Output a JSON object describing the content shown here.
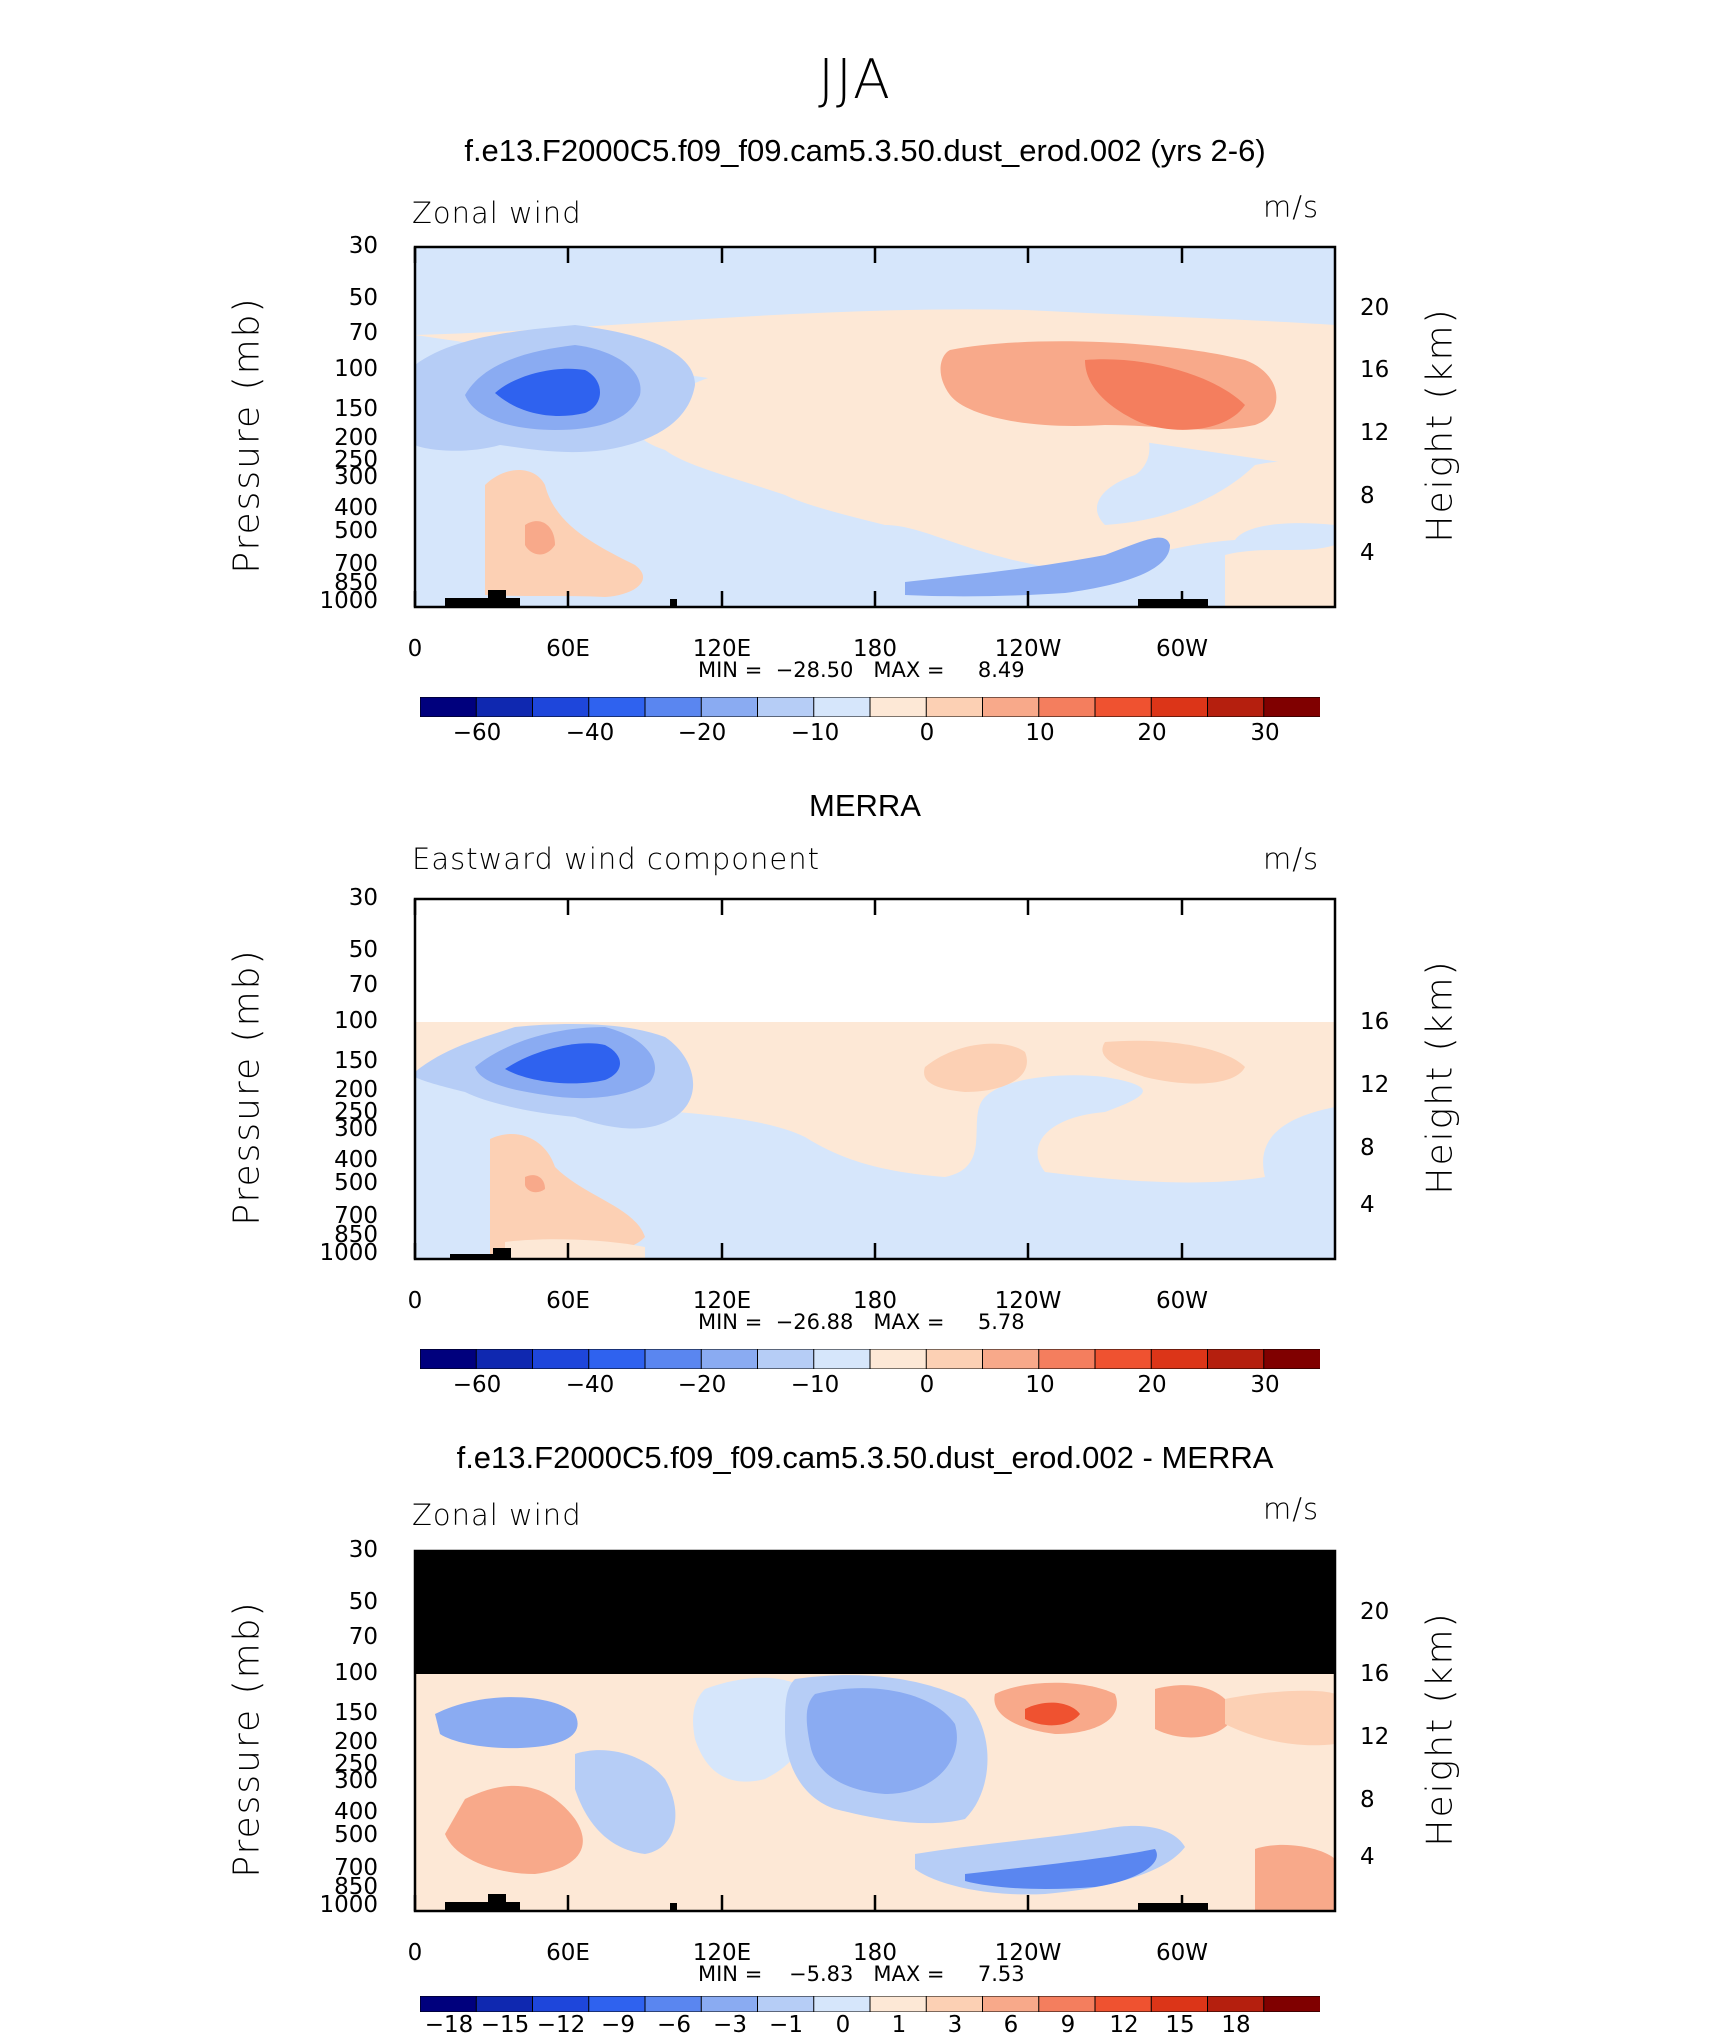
{
  "figure": {
    "title": "JJA"
  },
  "colors": {
    "blue_scale": [
      "#00007d",
      "#0f28b0",
      "#1e46db",
      "#2f62ef",
      "#5a86f0",
      "#8aabf2",
      "#b6cdf6",
      "#d6e6fb"
    ],
    "red_scale": [
      "#fde8d6",
      "#fcd0b4",
      "#f8a98a",
      "#f47e5e",
      "#ef5230",
      "#dc3518",
      "#b51f0e",
      "#800000"
    ],
    "land": "#000000"
  },
  "chart_data": [
    {
      "type": "heatmap",
      "panel": "model",
      "title": "f.e13.F2000C5.f09_f09.cam5.3.50.dust_erod.002 (yrs 2-6)",
      "left_label": "Zonal wind",
      "units": "m/s",
      "ylabel": "Pressure (mb)",
      "ylabel_right": "Height (km)",
      "y_ticks": [
        "30",
        "50",
        "70",
        "100",
        "150",
        "200",
        "250",
        "300",
        "400",
        "500",
        "700",
        "850",
        "1000"
      ],
      "y_ticks_right": [
        "20",
        "16",
        "12",
        "8",
        "4"
      ],
      "x_ticks": [
        "0",
        "60E",
        "120E",
        "180",
        "120W",
        "60W"
      ],
      "ylim": [
        1000,
        30
      ],
      "xlim": [
        0,
        360
      ],
      "stats": "MIN =  −28.50   MAX =     8.49",
      "min": -28.5,
      "max": 8.49,
      "colorbar_labels": [
        "−60",
        "−40",
        "−20",
        "−10",
        "0",
        "10",
        "20",
        "30"
      ]
    },
    {
      "type": "heatmap",
      "panel": "reanalysis",
      "title": "MERRA",
      "left_label": "Eastward wind component",
      "units": "m/s",
      "ylabel": "Pressure (mb)",
      "ylabel_right": "Height (km)",
      "y_ticks": [
        "30",
        "50",
        "70",
        "100",
        "150",
        "200",
        "250",
        "300",
        "400",
        "500",
        "700",
        "850",
        "1000"
      ],
      "y_ticks_right": [
        "16",
        "12",
        "8",
        "4"
      ],
      "x_ticks": [
        "0",
        "60E",
        "120E",
        "180",
        "120W",
        "60W"
      ],
      "ylim": [
        1000,
        30
      ],
      "xlim": [
        0,
        360
      ],
      "stats": "MIN =  −26.88   MAX =     5.78",
      "min": -26.88,
      "max": 5.78,
      "colorbar_labels": [
        "−60",
        "−40",
        "−20",
        "−10",
        "0",
        "10",
        "20",
        "30"
      ]
    },
    {
      "type": "heatmap",
      "panel": "difference",
      "title": "f.e13.F2000C5.f09_f09.cam5.3.50.dust_erod.002 - MERRA",
      "left_label": "Zonal wind",
      "units": "m/s",
      "ylabel": "Pressure (mb)",
      "ylabel_right": "Height (km)",
      "y_ticks": [
        "30",
        "50",
        "70",
        "100",
        "150",
        "200",
        "250",
        "300",
        "400",
        "500",
        "700",
        "850",
        "1000"
      ],
      "y_ticks_right": [
        "20",
        "16",
        "12",
        "8",
        "4"
      ],
      "x_ticks": [
        "0",
        "60E",
        "120E",
        "180",
        "120W",
        "60W"
      ],
      "ylim": [
        1000,
        30
      ],
      "xlim": [
        0,
        360
      ],
      "stats": "MIN =    −5.83   MAX =     7.53",
      "min": -5.83,
      "max": 7.53,
      "colorbar_labels": [
        "−18",
        "−15",
        "−12",
        "−9",
        "−6",
        "−3",
        "−1",
        "0",
        "1",
        "3",
        "6",
        "9",
        "12",
        "15",
        "18"
      ]
    }
  ]
}
